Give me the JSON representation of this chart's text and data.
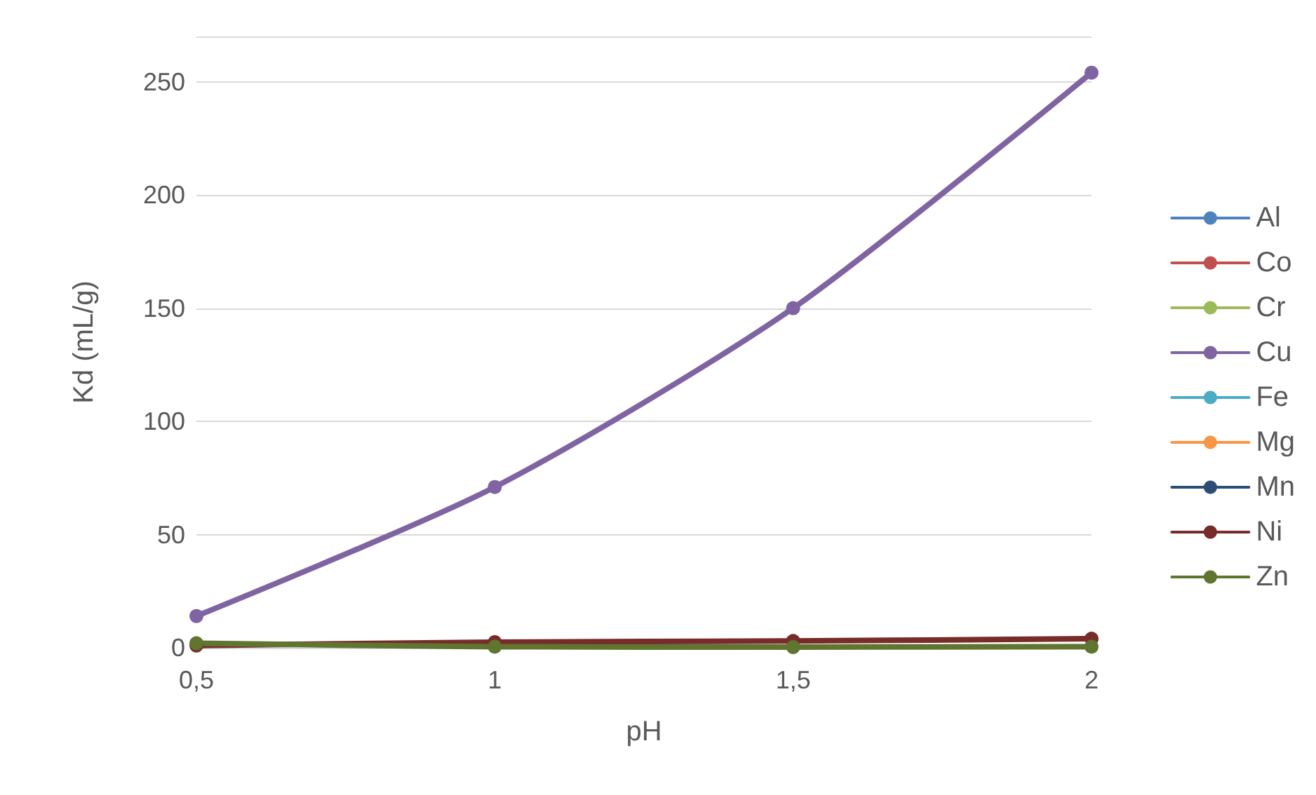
{
  "chart_data": {
    "type": "line",
    "xlabel": "pH",
    "ylabel": "Kd (mL/g)",
    "categories": [
      "0,5",
      "1",
      "1,5",
      "2"
    ],
    "series": [
      {
        "name": "Al",
        "color": "#4f81bd",
        "values": [
          null,
          null,
          null,
          null
        ]
      },
      {
        "name": "Co",
        "color": "#c0504d",
        "values": [
          null,
          null,
          null,
          null
        ]
      },
      {
        "name": "Cr",
        "color": "#9bbb59",
        "values": [
          null,
          null,
          null,
          null
        ]
      },
      {
        "name": "Cu",
        "color": "#8064a2",
        "values": [
          14,
          71,
          150,
          254
        ]
      },
      {
        "name": "Fe",
        "color": "#4bacc6",
        "values": [
          null,
          null,
          null,
          null
        ]
      },
      {
        "name": "Mg",
        "color": "#f79646",
        "values": [
          null,
          null,
          null,
          null
        ]
      },
      {
        "name": "Mn",
        "color": "#2c4d75",
        "values": [
          null,
          null,
          null,
          null
        ]
      },
      {
        "name": "Ni",
        "color": "#772c2a",
        "values": [
          1,
          2.5,
          3,
          4
        ]
      },
      {
        "name": "Zn",
        "color": "#5f7530",
        "values": [
          2,
          0.5,
          0.3,
          0.5
        ]
      }
    ],
    "ylim": [
      0,
      270
    ],
    "yticks": [
      0,
      50,
      100,
      150,
      200,
      250
    ],
    "grid": "y",
    "legend": "right",
    "marker": "circle",
    "line_style": "solid"
  }
}
